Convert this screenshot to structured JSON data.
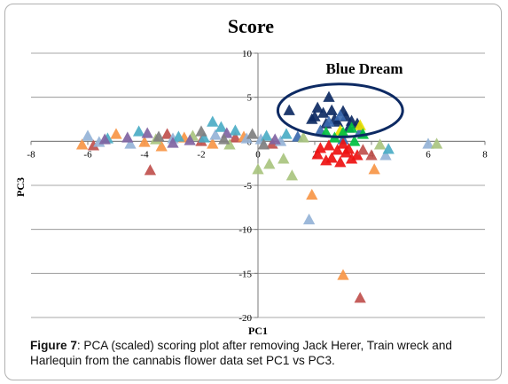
{
  "caption": {
    "label": "Figure 7",
    "text": ": PCA (scaled) scoring plot after removing Jack Herer, Train wreck and Harlequin from the cannabis flower data set PC1 vs PC3."
  },
  "chart_data": {
    "type": "scatter",
    "title": "Score",
    "xlabel": "PC1",
    "ylabel": "PC3",
    "xlim": [
      -8,
      8
    ],
    "ylim": [
      -20,
      10
    ],
    "xticks": [
      -8,
      -6,
      -4,
      -2,
      0,
      2,
      4,
      6,
      8
    ],
    "yticks": [
      10,
      5,
      0,
      -5,
      -10,
      -15,
      -20
    ],
    "grid": "horizontal",
    "marker": "triangle",
    "annotation": {
      "text": "Blue Dream",
      "ellipse_center": [
        2.9,
        3.5
      ],
      "ellipse_radii": [
        2.2,
        3.0
      ],
      "color": "#0d2a63"
    },
    "series": [
      {
        "color": "#0d2a63",
        "points": [
          [
            1.1,
            3.5
          ],
          [
            1.9,
            2.5
          ],
          [
            2.1,
            3.8
          ],
          [
            2.3,
            3.2
          ],
          [
            2.5,
            5.0
          ],
          [
            2.6,
            3.5
          ],
          [
            2.8,
            2.2
          ],
          [
            3.0,
            3.4
          ],
          [
            3.1,
            2.8
          ],
          [
            3.3,
            2.3
          ],
          [
            3.5,
            2.0
          ],
          [
            2.0,
            2.8
          ],
          [
            2.7,
            2.5
          ],
          [
            3.2,
            1.5
          ],
          [
            2.4,
            2.0
          ]
        ]
      },
      {
        "color": "#3b6ab0",
        "points": [
          [
            2.2,
            1.2
          ],
          [
            2.9,
            2.9
          ],
          [
            3.6,
            1.1
          ],
          [
            2.5,
            2.2
          ],
          [
            1.4,
            0.5
          ],
          [
            3.0,
            0.2
          ]
        ]
      },
      {
        "color": "#e8e000",
        "points": [
          [
            2.9,
            1.2
          ],
          [
            3.6,
            1.8
          ]
        ]
      },
      {
        "color": "#00c040",
        "points": [
          [
            2.4,
            1.0
          ],
          [
            3.0,
            1.0
          ],
          [
            3.3,
            1.5
          ],
          [
            3.7,
            0.8
          ],
          [
            2.7,
            0.4
          ],
          [
            3.4,
            0.0
          ]
        ]
      },
      {
        "color": "#ee1111",
        "points": [
          [
            2.1,
            -1.5
          ],
          [
            2.6,
            -1.9
          ],
          [
            2.9,
            -2.4
          ],
          [
            3.1,
            -1.3
          ],
          [
            2.4,
            -2.2
          ],
          [
            3.3,
            -2.0
          ],
          [
            2.8,
            -1.0
          ],
          [
            2.2,
            -0.8
          ],
          [
            3.0,
            -0.3
          ],
          [
            3.5,
            -1.6
          ],
          [
            2.5,
            -0.5
          ],
          [
            3.2,
            -0.9
          ]
        ]
      },
      {
        "color": "#c0504d",
        "points": [
          [
            3.6,
            -17.8
          ],
          [
            4.0,
            -1.6
          ],
          [
            3.7,
            -1.0
          ],
          [
            -3.8,
            -3.3
          ],
          [
            -5.8,
            -0.5
          ],
          [
            -2.0,
            0.0
          ],
          [
            -0.8,
            0.4
          ],
          [
            0.5,
            -0.3
          ],
          [
            -3.2,
            0.8
          ]
        ]
      },
      {
        "color": "#f79646",
        "points": [
          [
            3.0,
            -15.2
          ],
          [
            1.9,
            -6.1
          ],
          [
            4.1,
            -3.2
          ],
          [
            -6.2,
            -0.4
          ],
          [
            -4.0,
            -0.1
          ],
          [
            -2.6,
            0.4
          ],
          [
            -1.6,
            -0.3
          ],
          [
            -0.5,
            0.5
          ],
          [
            -5.0,
            0.8
          ],
          [
            -3.4,
            -0.6
          ]
        ]
      },
      {
        "color": "#95b3d7",
        "points": [
          [
            1.8,
            -8.9
          ],
          [
            -6.0,
            0.6
          ],
          [
            -4.5,
            -0.3
          ],
          [
            -3.0,
            0.3
          ],
          [
            -1.5,
            0.7
          ],
          [
            0.1,
            0.2
          ],
          [
            -0.4,
            0.3
          ],
          [
            0.8,
            0.0
          ],
          [
            4.5,
            -1.6
          ],
          [
            6.0,
            -0.3
          ],
          [
            -5.6,
            -0.1
          ]
        ]
      },
      {
        "color": "#a9c47f",
        "points": [
          [
            0.0,
            -3.2
          ],
          [
            1.2,
            -3.9
          ],
          [
            0.4,
            -2.6
          ],
          [
            0.9,
            -2.0
          ],
          [
            -1.0,
            -0.4
          ],
          [
            -2.3,
            0.6
          ],
          [
            -3.6,
            0.2
          ],
          [
            6.3,
            -0.3
          ],
          [
            4.3,
            -0.4
          ],
          [
            1.6,
            0.4
          ]
        ]
      },
      {
        "color": "#4bacc6",
        "points": [
          [
            -1.6,
            2.2
          ],
          [
            -1.3,
            1.6
          ],
          [
            -0.8,
            1.2
          ],
          [
            -2.8,
            0.5
          ],
          [
            -4.2,
            1.1
          ],
          [
            -5.3,
            0.3
          ],
          [
            -1.9,
            0.4
          ],
          [
            0.3,
            0.6
          ],
          [
            4.6,
            -0.9
          ],
          [
            1.0,
            0.8
          ]
        ]
      },
      {
        "color": "#8064a2",
        "points": [
          [
            -5.4,
            0.2
          ],
          [
            -3.9,
            0.9
          ],
          [
            -4.6,
            0.4
          ],
          [
            -2.4,
            0.1
          ],
          [
            -1.1,
            0.9
          ],
          [
            0.6,
            0.2
          ],
          [
            -3.0,
            -0.2
          ]
        ]
      },
      {
        "color": "#7f7f7f",
        "points": [
          [
            -2.0,
            1.1
          ],
          [
            -1.2,
            0.2
          ],
          [
            -0.2,
            0.8
          ],
          [
            -3.5,
            0.5
          ],
          [
            0.2,
            -0.4
          ]
        ]
      }
    ]
  }
}
